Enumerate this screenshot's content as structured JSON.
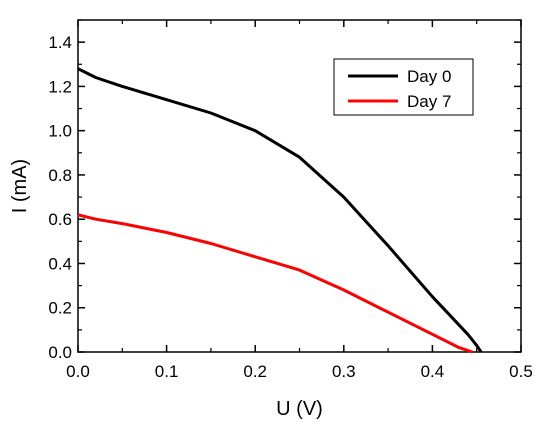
{
  "chart_data": {
    "type": "line",
    "title": "",
    "xlabel": "U (V)",
    "ylabel": "I (mA)",
    "xlim": [
      0.0,
      0.5
    ],
    "ylim": [
      0.0,
      1.5
    ],
    "xticks": [
      0.0,
      0.1,
      0.2,
      0.3,
      0.4,
      0.5
    ],
    "yticks": [
      0.0,
      0.2,
      0.4,
      0.6,
      0.8,
      1.0,
      1.2,
      1.4
    ],
    "xtick_labels": [
      "0.0",
      "0.1",
      "0.2",
      "0.3",
      "0.4",
      "0.5"
    ],
    "ytick_labels": [
      "0.0",
      "0.2",
      "0.4",
      "0.6",
      "0.8",
      "1.0",
      "1.2",
      "1.4"
    ],
    "grid": false,
    "legend_position": "top-right",
    "series": [
      {
        "name": "Day 0",
        "color": "#000000",
        "x": [
          0.0,
          0.01,
          0.02,
          0.05,
          0.1,
          0.15,
          0.2,
          0.25,
          0.3,
          0.35,
          0.4,
          0.44,
          0.45,
          0.455
        ],
        "y": [
          1.28,
          1.26,
          1.24,
          1.2,
          1.14,
          1.08,
          1.0,
          0.88,
          0.7,
          0.48,
          0.25,
          0.08,
          0.03,
          0.0
        ]
      },
      {
        "name": "Day 7",
        "color": "#ff0000",
        "x": [
          0.0,
          0.02,
          0.05,
          0.1,
          0.15,
          0.2,
          0.25,
          0.3,
          0.35,
          0.4,
          0.43,
          0.445
        ],
        "y": [
          0.62,
          0.6,
          0.58,
          0.54,
          0.49,
          0.43,
          0.37,
          0.28,
          0.18,
          0.08,
          0.02,
          0.0
        ]
      }
    ]
  }
}
